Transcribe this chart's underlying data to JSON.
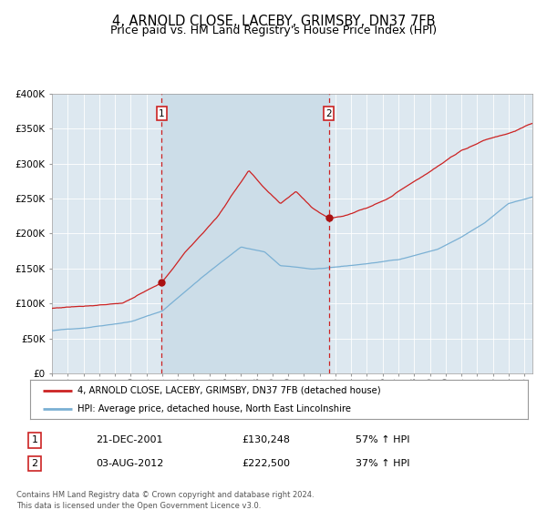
{
  "title": "4, ARNOLD CLOSE, LACEBY, GRIMSBY, DN37 7FB",
  "subtitle": "Price paid vs. HM Land Registry's House Price Index (HPI)",
  "title_fontsize": 10.5,
  "subtitle_fontsize": 9,
  "background_color": "#ffffff",
  "plot_bg_color": "#dde8f0",
  "ylabel": "",
  "xlabel": "",
  "ylim": [
    0,
    400000
  ],
  "yticks": [
    0,
    50000,
    100000,
    150000,
    200000,
    250000,
    300000,
    350000,
    400000
  ],
  "ytick_labels": [
    "£0",
    "£50K",
    "£100K",
    "£150K",
    "£200K",
    "£250K",
    "£300K",
    "£350K",
    "£400K"
  ],
  "hpi_color": "#7ab0d4",
  "price_color": "#cc2222",
  "marker_color": "#aa1111",
  "vline_color": "#cc2222",
  "shade_color": "#ccdde8",
  "purchase1_date_num": 2001.97,
  "purchase1_price": 130248,
  "purchase2_date_num": 2012.58,
  "purchase2_price": 222500,
  "legend_house_label": "4, ARNOLD CLOSE, LACEBY, GRIMSBY, DN37 7FB (detached house)",
  "legend_hpi_label": "HPI: Average price, detached house, North East Lincolnshire",
  "table_data": [
    [
      "1",
      "21-DEC-2001",
      "£130,248",
      "57% ↑ HPI"
    ],
    [
      "2",
      "03-AUG-2012",
      "£222,500",
      "37% ↑ HPI"
    ]
  ],
  "footnote": "Contains HM Land Registry data © Crown copyright and database right 2024.\nThis data is licensed under the Open Government Licence v3.0.",
  "xstart": 1995.0,
  "xend": 2025.5
}
